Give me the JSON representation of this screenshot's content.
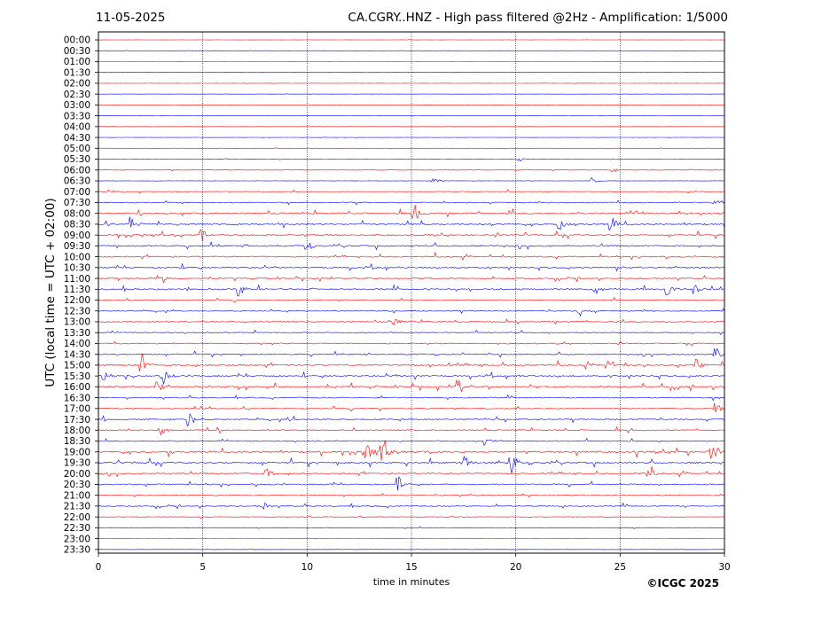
{
  "date": "11-05-2025",
  "title": "CA.CGRY..HNZ - High pass filtered @2Hz - Amplification: 1/5000",
  "copyright": "©ICGC 2025",
  "chart_data": {
    "type": "seismogram-helicorder",
    "xlabel": "time in minutes",
    "ylabel": "UTC (local time = UTC + 02:00)",
    "xlim": [
      0,
      30
    ],
    "x_ticks": [
      0,
      5,
      10,
      15,
      20,
      25,
      30
    ],
    "vertical_gridlines": [
      5,
      10,
      15,
      20,
      25
    ],
    "row_labels": [
      "00:00",
      "00:30",
      "01:00",
      "01:30",
      "02:00",
      "02:30",
      "03:00",
      "03:30",
      "04:00",
      "04:30",
      "05:00",
      "05:30",
      "06:00",
      "06:30",
      "07:00",
      "07:30",
      "08:00",
      "08:30",
      "09:00",
      "09:30",
      "10:00",
      "10:30",
      "11:00",
      "11:30",
      "12:00",
      "12:30",
      "13:00",
      "13:30",
      "14:00",
      "14:30",
      "15:00",
      "15:30",
      "16:00",
      "16:30",
      "17:00",
      "17:30",
      "18:00",
      "18:30",
      "19:00",
      "19:30",
      "20:00",
      "20:30",
      "21:00",
      "21:30",
      "22:00",
      "22:30",
      "23:00",
      "23:30"
    ],
    "trace_colors": [
      "#ff0000",
      "#0000ff"
    ],
    "activity": [
      0.2,
      0.2,
      0.2,
      0.2,
      0.2,
      0.2,
      0.25,
      0.2,
      0.2,
      0.25,
      0.2,
      0.3,
      0.35,
      0.4,
      0.8,
      1.0,
      1.5,
      1.5,
      1.4,
      1.4,
      1.3,
      1.4,
      1.2,
      1.5,
      1.0,
      1.0,
      1.0,
      1.0,
      1.0,
      1.1,
      1.5,
      1.5,
      1.6,
      1.0,
      1.1,
      1.3,
      1.2,
      1.1,
      1.8,
      1.6,
      1.3,
      1.2,
      0.8,
      1.1,
      0.6,
      0.5,
      0.2,
      0.2
    ],
    "events": [
      {
        "row": 11,
        "t": 20.2,
        "amp": 3
      },
      {
        "row": 12,
        "t": 24.7,
        "amp": 4
      },
      {
        "row": 13,
        "t": 16.1,
        "amp": 4
      },
      {
        "row": 13,
        "t": 23.7,
        "amp": 4
      },
      {
        "row": 15,
        "t": 29.6,
        "amp": 8
      },
      {
        "row": 16,
        "t": 15.2,
        "amp": 9
      },
      {
        "row": 17,
        "t": 1.6,
        "amp": 9
      },
      {
        "row": 17,
        "t": 24.6,
        "amp": 9
      },
      {
        "row": 17,
        "t": 22.1,
        "amp": 7
      },
      {
        "row": 18,
        "t": 5.0,
        "amp": 6
      },
      {
        "row": 19,
        "t": 10.0,
        "amp": 6
      },
      {
        "row": 22,
        "t": 3.1,
        "amp": 6
      },
      {
        "row": 23,
        "t": 6.8,
        "amp": 8
      },
      {
        "row": 23,
        "t": 27.3,
        "amp": 9
      },
      {
        "row": 23,
        "t": 28.6,
        "amp": 6
      },
      {
        "row": 25,
        "t": 23.1,
        "amp": 5
      },
      {
        "row": 26,
        "t": 14.2,
        "amp": 5
      },
      {
        "row": 29,
        "t": 29.6,
        "amp": 9
      },
      {
        "row": 30,
        "t": 2.1,
        "amp": 12
      },
      {
        "row": 30,
        "t": 24.4,
        "amp": 6
      },
      {
        "row": 30,
        "t": 28.7,
        "amp": 7
      },
      {
        "row": 31,
        "t": 3.2,
        "amp": 9
      },
      {
        "row": 31,
        "t": 0.3,
        "amp": 6
      },
      {
        "row": 32,
        "t": 2.8,
        "amp": 9
      },
      {
        "row": 32,
        "t": 17.3,
        "amp": 8
      },
      {
        "row": 34,
        "t": 29.6,
        "amp": 7
      },
      {
        "row": 35,
        "t": 4.4,
        "amp": 11
      },
      {
        "row": 36,
        "t": 3.0,
        "amp": 6
      },
      {
        "row": 37,
        "t": 18.6,
        "amp": 6
      },
      {
        "row": 38,
        "t": 13.6,
        "amp": 18
      },
      {
        "row": 38,
        "t": 12.9,
        "amp": 10
      },
      {
        "row": 38,
        "t": 29.4,
        "amp": 10
      },
      {
        "row": 39,
        "t": 17.6,
        "amp": 9
      },
      {
        "row": 39,
        "t": 19.8,
        "amp": 12
      },
      {
        "row": 40,
        "t": 26.4,
        "amp": 7
      },
      {
        "row": 40,
        "t": 8.1,
        "amp": 6
      },
      {
        "row": 41,
        "t": 14.4,
        "amp": 8
      },
      {
        "row": 43,
        "t": 7.9,
        "amp": 5
      }
    ]
  }
}
